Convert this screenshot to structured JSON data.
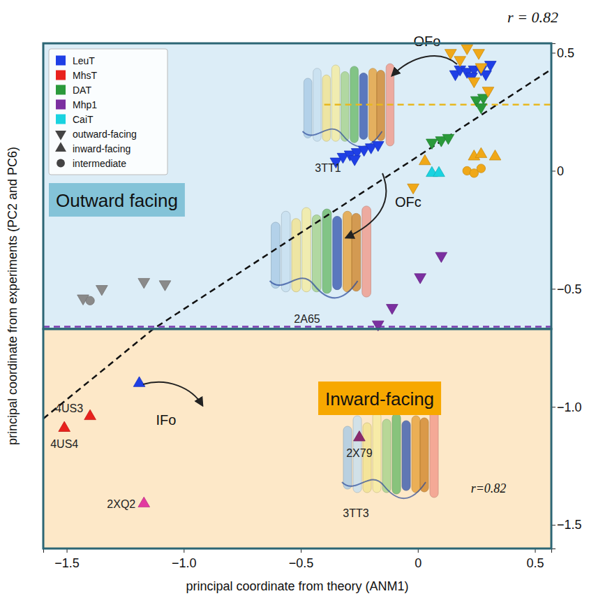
{
  "chart_data": {
    "type": "scatter",
    "x_label": "principal coordinate from theory (ANM1)",
    "y_label": "principal coordinate from experiments (PC2 and PC6)",
    "xlim": [
      -1.6,
      0.57
    ],
    "ylim": [
      -1.6,
      0.54
    ],
    "xticks": [
      {
        "value": -1.5,
        "label": "−1.5"
      },
      {
        "value": -1,
        "label": "−1.0"
      },
      {
        "value": -0.5,
        "label": "−0.5"
      },
      0,
      0.5
    ],
    "yticks": [
      0.5,
      0,
      {
        "value": -0.5,
        "label": "−0.5"
      },
      {
        "value": -1,
        "label": "−1.0"
      },
      {
        "value": -1.5,
        "label": "−1.5"
      }
    ],
    "legend": "top-left",
    "correlation_labels": [
      "r = 0.82",
      "r=0.82"
    ],
    "transitions": [
      "OFo",
      "OFc",
      "IFo"
    ],
    "structures": [
      "3TT1",
      "2A65",
      "3TT3"
    ],
    "regions": [
      {
        "label": "Outward facing",
        "from": -0.67,
        "to": 0.54,
        "color": "#dcedf7",
        "label_color": "#84c3d8"
      },
      {
        "label": "Inward-facing",
        "from": -1.6,
        "to": -0.67,
        "color": "#fde8c8",
        "label_color": "#f7a800"
      }
    ],
    "marker_legend": [
      {
        "marker": "down",
        "label": "outward-facing"
      },
      {
        "marker": "up",
        "label": "inward-facing"
      },
      {
        "marker": "circle",
        "label": "intermediate"
      }
    ],
    "lines": [
      {
        "x": [
          -1.6,
          -1.13,
          0.57
        ],
        "values": [
          -1.05,
          -0.67,
          0.43
        ],
        "color": "#111111",
        "line_style": "dashed"
      },
      {
        "x": [
          -0.4,
          0.57
        ],
        "values": [
          0.28,
          0.28
        ],
        "color": "#e8b820",
        "line_style": "dashed"
      },
      {
        "x": [
          -1.6,
          0.57
        ],
        "values": [
          -0.66,
          -0.66
        ],
        "color": "#7a3ab0",
        "line_style": "dashed"
      }
    ],
    "series": [
      {
        "name": "LeuT",
        "color": "#1f3fe6",
        "x": [
          0.16,
          0.18,
          0.21,
          0.24,
          0.27,
          0.31,
          0.29,
          0.23,
          -0.35,
          -0.32,
          -0.29,
          -0.26,
          -0.23,
          -0.2,
          -0.17,
          -0.27,
          -1.19
        ],
        "values": [
          0.41,
          0.43,
          0.42,
          0.43,
          0.43,
          0.45,
          0.41,
          0.4,
          0.04,
          0.06,
          0.07,
          0.08,
          0.09,
          0.1,
          0.11,
          0.05,
          -0.9
        ],
        "markers": [
          "down",
          "down",
          "down",
          "down",
          "down",
          "down",
          "down",
          "down",
          "down",
          "down",
          "down",
          "down",
          "down",
          "down",
          "down",
          "down",
          "up"
        ]
      },
      {
        "name": "MhsT",
        "color": "#e8211d",
        "x": [
          -1.4,
          -1.51
        ],
        "values": [
          -1.04,
          -1.09
        ],
        "markers": [
          "up",
          "up"
        ],
        "labels": [
          "4US3",
          "4US4"
        ]
      },
      {
        "name": "DAT",
        "color": "#2a9a3a",
        "x": [
          0.25,
          0.28,
          0.27,
          0.06,
          0.1,
          0.13
        ],
        "values": [
          0.3,
          0.31,
          0.27,
          0.12,
          0.13,
          0.14
        ],
        "markers": [
          "down",
          "down",
          "down",
          "down",
          "down",
          "down"
        ]
      },
      {
        "name": "Mhp1",
        "color": "#7b2fa0",
        "x": [
          -0.17,
          -0.11,
          0.01,
          0.1
        ],
        "values": [
          -0.65,
          -0.58,
          -0.45,
          -0.36
        ],
        "markers": [
          "down",
          "down",
          "down",
          "down"
        ]
      },
      {
        "name": "CaiT",
        "color": "#19d3e0",
        "x": [
          0.06,
          0.09
        ],
        "values": [
          -0.01,
          -0.01
        ],
        "markers": [
          "up",
          "up"
        ]
      },
      {
        "color": "#f0a818",
        "x": [
          0.14,
          0.18,
          0.21,
          0.26,
          0.27,
          0.24,
          0.3,
          -0.02,
          0.03,
          0.24,
          0.27,
          0.33,
          0.21,
          0.27,
          0.24
        ],
        "values": [
          0.5,
          0.47,
          0.52,
          0.5,
          0.44,
          0.38,
          0.34,
          -0.07,
          0.04,
          0.06,
          0.07,
          0.06,
          0.0,
          0.01,
          -0.01
        ],
        "markers": [
          "down",
          "down",
          "down",
          "down",
          "down",
          "down",
          "down",
          "down",
          "up",
          "up",
          "up",
          "up",
          "circle",
          "circle",
          "circle"
        ]
      },
      {
        "color": "#8a8a8a",
        "x": [
          -1.43,
          -1.4,
          -1.35,
          -1.17,
          -1.08
        ],
        "values": [
          -0.54,
          -0.55,
          -0.5,
          -0.47,
          -0.48
        ],
        "markers": [
          "down",
          "circle",
          "down",
          "down",
          "down"
        ]
      },
      {
        "color": "#8a2a6e",
        "x": [
          -0.25
        ],
        "values": [
          -1.13
        ],
        "markers": [
          "up"
        ],
        "labels": [
          "2X79"
        ]
      },
      {
        "color": "#e23aa0",
        "x": [
          -1.17
        ],
        "values": [
          -1.41
        ],
        "markers": [
          "up"
        ],
        "labels": [
          "2XQ2"
        ]
      }
    ]
  }
}
